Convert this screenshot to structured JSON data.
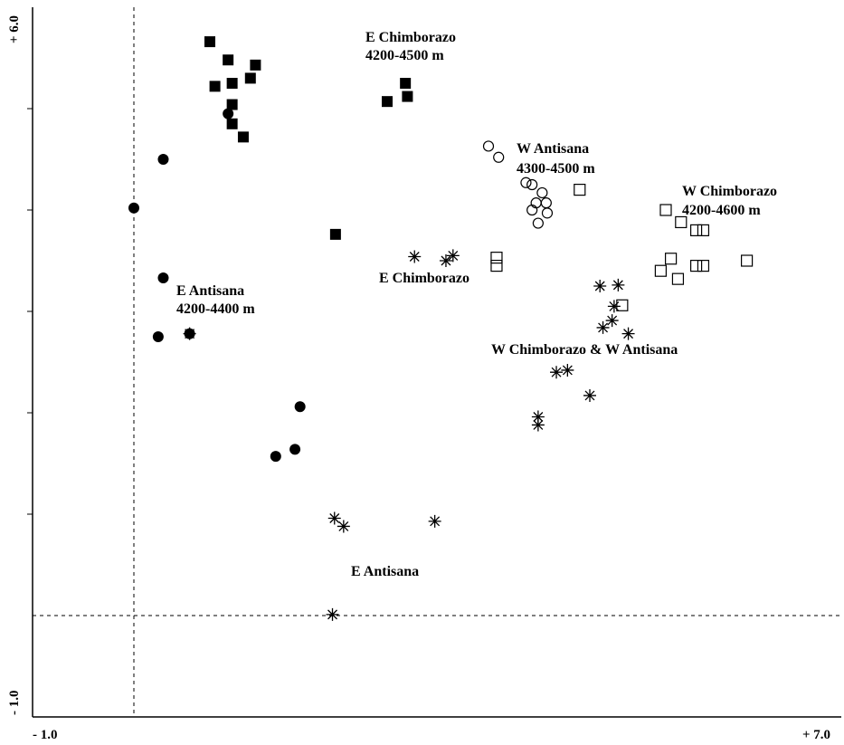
{
  "chart_data": {
    "type": "scatter",
    "xlim": [
      -1.0,
      7.0
    ],
    "ylim": [
      -1.0,
      6.0
    ],
    "x_tick_labels": [
      "- 1.0",
      "+ 7.0"
    ],
    "y_tick_labels": [
      "+ 6.0",
      "- 1.0"
    ],
    "reference_lines": {
      "x": 0.0,
      "y": 0.0
    },
    "grid": false,
    "series": [
      {
        "marker": "filled-square",
        "points": [
          [
            0.75,
            5.66
          ],
          [
            0.93,
            5.48
          ],
          [
            1.2,
            5.43
          ],
          [
            0.8,
            5.22
          ],
          [
            1.15,
            5.3
          ],
          [
            0.97,
            5.04
          ],
          [
            2.68,
            5.25
          ],
          [
            0.97,
            5.25
          ],
          [
            2.5,
            5.07
          ],
          [
            2.7,
            5.12
          ],
          [
            0.97,
            4.85
          ],
          [
            1.08,
            4.72
          ],
          [
            1.99,
            3.76
          ]
        ]
      },
      {
        "marker": "filled-circle",
        "points": [
          [
            0.93,
            4.95
          ],
          [
            0.29,
            4.5
          ],
          [
            0.0,
            4.02
          ],
          [
            0.29,
            3.33
          ],
          [
            0.24,
            2.75
          ],
          [
            0.55,
            2.78
          ],
          [
            1.64,
            2.06
          ],
          [
            1.59,
            1.64
          ],
          [
            1.4,
            1.57
          ]
        ]
      },
      {
        "marker": "open-circle",
        "points": [
          [
            3.5,
            4.63
          ],
          [
            3.6,
            4.52
          ],
          [
            3.87,
            4.27
          ],
          [
            3.93,
            4.25
          ],
          [
            4.03,
            4.17
          ],
          [
            3.97,
            4.07
          ],
          [
            4.07,
            4.07
          ],
          [
            3.93,
            4.0
          ],
          [
            4.08,
            3.97
          ],
          [
            3.99,
            3.87
          ]
        ]
      },
      {
        "marker": "open-square",
        "points": [
          [
            4.4,
            4.2
          ],
          [
            5.25,
            4.0
          ],
          [
            5.4,
            3.88
          ],
          [
            5.55,
            3.8
          ],
          [
            5.62,
            3.8
          ],
          [
            6.05,
            3.5
          ],
          [
            5.3,
            3.52
          ],
          [
            5.55,
            3.45
          ],
          [
            5.62,
            3.45
          ],
          [
            5.2,
            3.4
          ],
          [
            5.37,
            3.32
          ],
          [
            3.58,
            3.53
          ],
          [
            3.58,
            3.45
          ],
          [
            4.82,
            3.06
          ]
        ]
      },
      {
        "marker": "asterisk",
        "points": [
          [
            2.77,
            3.54
          ],
          [
            3.08,
            3.5
          ],
          [
            3.15,
            3.55
          ],
          [
            4.6,
            3.25
          ],
          [
            4.78,
            3.26
          ],
          [
            4.74,
            3.05
          ],
          [
            4.72,
            2.91
          ],
          [
            4.63,
            2.84
          ],
          [
            4.88,
            2.78
          ],
          [
            0.55,
            2.78
          ],
          [
            4.17,
            2.4
          ],
          [
            4.28,
            2.42
          ],
          [
            4.5,
            2.17
          ],
          [
            3.99,
            1.96
          ],
          [
            3.99,
            1.88
          ],
          [
            1.98,
            0.96
          ],
          [
            2.07,
            0.88
          ],
          [
            2.97,
            0.93
          ],
          [
            1.96,
            0.01
          ]
        ]
      }
    ],
    "annotations": [
      {
        "lines": [
          "E Chimborazo",
          "4200-4500 m"
        ]
      },
      {
        "lines": [
          "W Antisana",
          "4300-4500 m"
        ]
      },
      {
        "lines": [
          "W Chimborazo",
          "4200-4600 m"
        ]
      },
      {
        "lines": [
          "E Chimborazo"
        ]
      },
      {
        "lines": [
          "E Antisana",
          "4200-4400 m"
        ]
      },
      {
        "lines": [
          "W Chimborazo & W Antisana"
        ]
      },
      {
        "lines": [
          "E Antisana"
        ]
      }
    ]
  }
}
